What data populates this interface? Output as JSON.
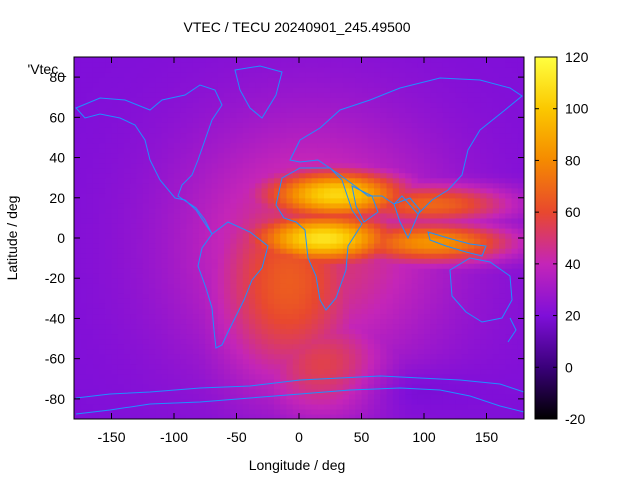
{
  "chart_data": {
    "type": "heatmap",
    "title": "VTEC / TECU 20240901_245.49500",
    "xlabel": "Longitude / deg",
    "ylabel": "Latitude / deg",
    "xlim": [
      -180,
      180
    ],
    "ylim": [
      -90,
      90
    ],
    "xticks": [
      -150,
      -100,
      -50,
      0,
      50,
      100,
      150
    ],
    "yticks": [
      -80,
      -60,
      -40,
      -20,
      0,
      20,
      40,
      60,
      80
    ],
    "legend_label": "'Vtec_",
    "colorbar": {
      "range": [
        -20,
        120
      ],
      "ticks": [
        -20,
        0,
        20,
        40,
        60,
        80,
        100,
        120
      ],
      "palette": [
        "#000000",
        "#3a007a",
        "#7f0fd9",
        "#c425b8",
        "#e8482e",
        "#f58a00",
        "#fbc800",
        "#ffff40"
      ]
    },
    "field": {
      "background_tecu": 20,
      "features": [
        {
          "kind": "equatorial_crest",
          "lon": 30,
          "lat": 22,
          "peak_tecu": 105
        },
        {
          "kind": "equatorial_crest",
          "lon": 20,
          "lat": 0,
          "peak_tecu": 108
        },
        {
          "kind": "equatorial_band",
          "lon": 110,
          "lat": -2,
          "peak_tecu": 85
        },
        {
          "kind": "equatorial_band",
          "lon": 110,
          "lat": 17,
          "peak_tecu": 70
        },
        {
          "kind": "dayside_bulge",
          "lon": -10,
          "lat": -25,
          "peak_tecu": 60
        },
        {
          "kind": "southern_extension",
          "lon": 20,
          "lat": -65,
          "peak_tecu": 55
        }
      ]
    }
  }
}
